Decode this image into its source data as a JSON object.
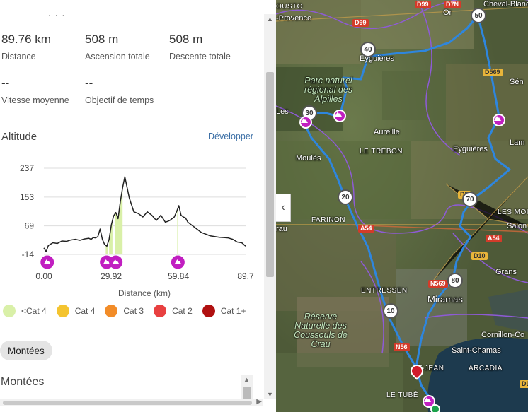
{
  "header_dots": ". . .",
  "stats": {
    "distance": {
      "value": "89.76 km",
      "label": "Distance"
    },
    "ascent": {
      "value": "508 m",
      "label": "Ascension totale"
    },
    "descent": {
      "value": "508 m",
      "label": "Descente totale"
    },
    "avg_speed": {
      "value": "--",
      "label": "Vitesse moyenne"
    },
    "time_goal": {
      "value": "--",
      "label": "Objectif de temps"
    }
  },
  "altitude": {
    "title": "Altitude",
    "expand_label": "Développer"
  },
  "chart_data": {
    "type": "area",
    "xlabel": "Distance (km)",
    "ylabel": "",
    "ylim": [
      -14,
      237
    ],
    "xlim": [
      0,
      89.7
    ],
    "y_ticks": [
      "237",
      "153",
      "69",
      "-14"
    ],
    "x_ticks": [
      "0.00",
      "29.92",
      "59.84",
      "89.7"
    ],
    "x": [
      0,
      1,
      2,
      4,
      6,
      8,
      10,
      12,
      14,
      16,
      17,
      18,
      19,
      20,
      21,
      22,
      23,
      24,
      25,
      26,
      27,
      28,
      29,
      30,
      31,
      32,
      33,
      34,
      35,
      36,
      38,
      40,
      42,
      44,
      46,
      48,
      50,
      52,
      54,
      55,
      56,
      57,
      58,
      59,
      60,
      61,
      62,
      63,
      64,
      66,
      68,
      70,
      72,
      74,
      76,
      78,
      80,
      82,
      84,
      86,
      88,
      89.7
    ],
    "elevation": [
      5,
      -6,
      12,
      20,
      18,
      25,
      24,
      28,
      30,
      27,
      29,
      31,
      32,
      33,
      30,
      35,
      34,
      38,
      60,
      30,
      15,
      10,
      30,
      72,
      98,
      108,
      90,
      140,
      180,
      212,
      150,
      110,
      105,
      95,
      110,
      100,
      85,
      100,
      80,
      82,
      85,
      90,
      95,
      110,
      128,
      100,
      95,
      92,
      80,
      70,
      60,
      50,
      45,
      40,
      38,
      36,
      35,
      34,
      30,
      22,
      20,
      10
    ],
    "climbs": [
      {
        "category": "<Cat 4",
        "start_km": 27.5,
        "end_km": 28.5
      },
      {
        "category": "<Cat 4",
        "start_km": 29.0,
        "end_km": 30.5
      },
      {
        "category": "<Cat 4",
        "start_km": 31.5,
        "end_km": 35.0
      },
      {
        "category": "<Cat 4",
        "start_km": 59.3,
        "end_km": 59.8
      }
    ],
    "climb_markers_km": [
      1.5,
      27.9,
      32.0,
      59.6
    ]
  },
  "legend": [
    {
      "label": "<Cat 4",
      "color": "#d9f0a8"
    },
    {
      "label": "Cat 4",
      "color": "#f4c430"
    },
    {
      "label": "Cat 3",
      "color": "#f28c28"
    },
    {
      "label": "Cat 2",
      "color": "#e84040"
    },
    {
      "label": "Cat 1+",
      "color": "#b01010"
    }
  ],
  "climbs_pill": "Montées",
  "climbs_title": "Montées",
  "map": {
    "labels": {
      "cousto": "OUSTO",
      "provence": "-Provence",
      "parc": "Parc naturel régional des Alpilles",
      "eyguieres_north": "Eyguières",
      "aureille": "Aureille",
      "le_trebon": "LE TRÉBON",
      "moules": "Moulès",
      "eyguieres": "Eyguières",
      "farinon": "FARINON",
      "rau": "rau",
      "les_moulins": "LES MOUL",
      "salon": "Salon",
      "entressen": "ENTRESSEN",
      "miramas": "Miramas",
      "grans": "Grans",
      "reserve": "Réserve Naturelle des Coussouls de Crau",
      "cornillon": "Cornillon-Co",
      "saint_chamas": "Saint-Chamas",
      "arcadia": "ARCADIA",
      "st_jean": "T-JEAN",
      "le_tube": "LE TUBÉ",
      "lam": "Lam",
      "sen": "Sén",
      "orgon": "Or",
      "cheval_blanc": "Cheval-Blanc",
      "les": "Les"
    },
    "roads": {
      "d99_a": "D99",
      "d7n": "D7N",
      "d99_b": "D99",
      "d569": "D569",
      "d5": "D5",
      "a54_a": "A54",
      "a54_b": "A54",
      "n569": "N569",
      "n56": "N56",
      "d10": "D10",
      "d1": "D1"
    },
    "km_markers": [
      "50",
      "40",
      "30",
      "20",
      "70",
      "80",
      "10"
    ]
  }
}
